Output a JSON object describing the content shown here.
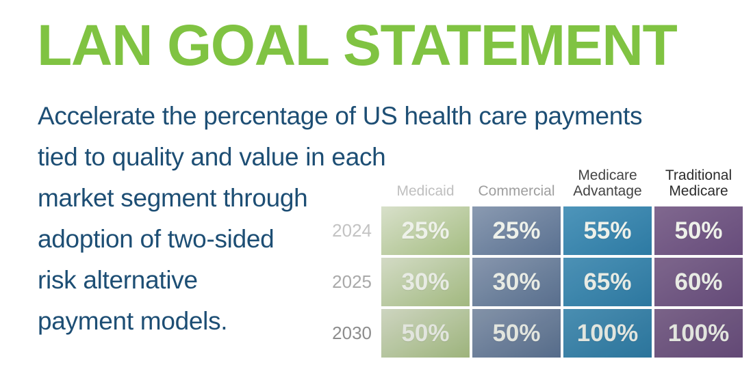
{
  "page": {
    "background": "#ffffff"
  },
  "title": {
    "text": "LAN GOAL STATEMENT",
    "color": "#80c342"
  },
  "description": {
    "color": "#1d4e74",
    "lines": [
      "Accelerate the percentage of US health care payments",
      "tied to quality and value in each",
      "market segment through",
      "adoption of two-sided",
      "risk alternative",
      "payment models."
    ]
  },
  "chart_data": {
    "type": "table",
    "title": "LAN Goal Statement targets by market segment",
    "columns": [
      "Medicaid",
      "Commercial",
      "Medicare Advantage",
      "Traditional Medicare"
    ],
    "rows": [
      "2024",
      "2025",
      "2030"
    ],
    "values": [
      [
        "25%",
        "25%",
        "55%",
        "50%"
      ],
      [
        "30%",
        "30%",
        "65%",
        "60%"
      ],
      [
        "50%",
        "50%",
        "100%",
        "100%"
      ]
    ],
    "header_colors": [
      "#bfbfbf",
      "#9e9e9e",
      "#434343",
      "#2b2b2b"
    ],
    "row_label_colors": [
      "#c3c3c3",
      "#a9a9a9",
      "#8d8d8d"
    ],
    "column_cell_colors": [
      {
        "light": "#d8e0ca",
        "dark": "#a5bd82"
      },
      {
        "light": "#8a9ab1",
        "dark": "#5a7191"
      },
      {
        "light": "#4e95ba",
        "dark": "#2d7aa3"
      },
      {
        "light": "#80688f",
        "dark": "#674c7b"
      }
    ],
    "value_text_color": "#eef1ea",
    "legend": "none",
    "grid": "off"
  }
}
